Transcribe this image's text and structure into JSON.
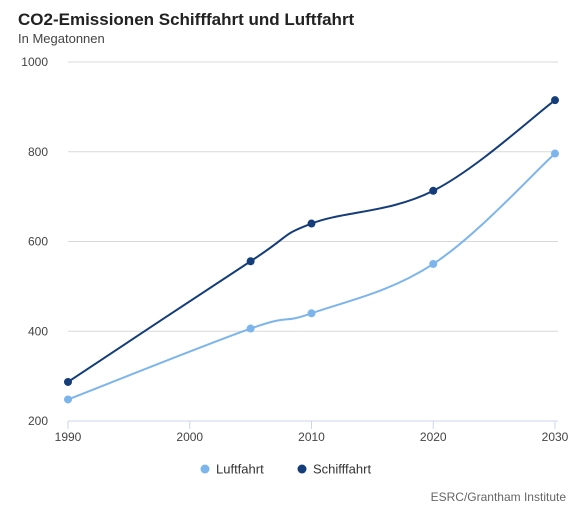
{
  "chart_data": {
    "type": "line",
    "title": "CO2-Emissionen Schifffahrt und Luftfahrt",
    "subtitle": "In Megatonnen",
    "xlabel": "",
    "ylabel": "",
    "x_ticks": [
      1990,
      2000,
      2010,
      2020,
      2030
    ],
    "y_ticks": [
      200,
      400,
      600,
      800,
      1000
    ],
    "xlim": [
      1990,
      2030
    ],
    "ylim": [
      200,
      1000
    ],
    "grid": "horizontal",
    "legend": "bottom-center",
    "series": [
      {
        "name": "Luftfahrt",
        "color": "#7cb5ec",
        "points": [
          {
            "x": 1990,
            "y": 248
          },
          {
            "x": 2005,
            "y": 406
          },
          {
            "x": 2010,
            "y": 440
          },
          {
            "x": 2020,
            "y": 550
          },
          {
            "x": 2030,
            "y": 796
          }
        ]
      },
      {
        "name": "Schifffahrt",
        "color": "#143d7a",
        "points": [
          {
            "x": 1990,
            "y": 287
          },
          {
            "x": 2005,
            "y": 556
          },
          {
            "x": 2010,
            "y": 640
          },
          {
            "x": 2020,
            "y": 713
          },
          {
            "x": 2030,
            "y": 915
          }
        ]
      }
    ]
  },
  "credit": "ESRC/Grantham Institute"
}
